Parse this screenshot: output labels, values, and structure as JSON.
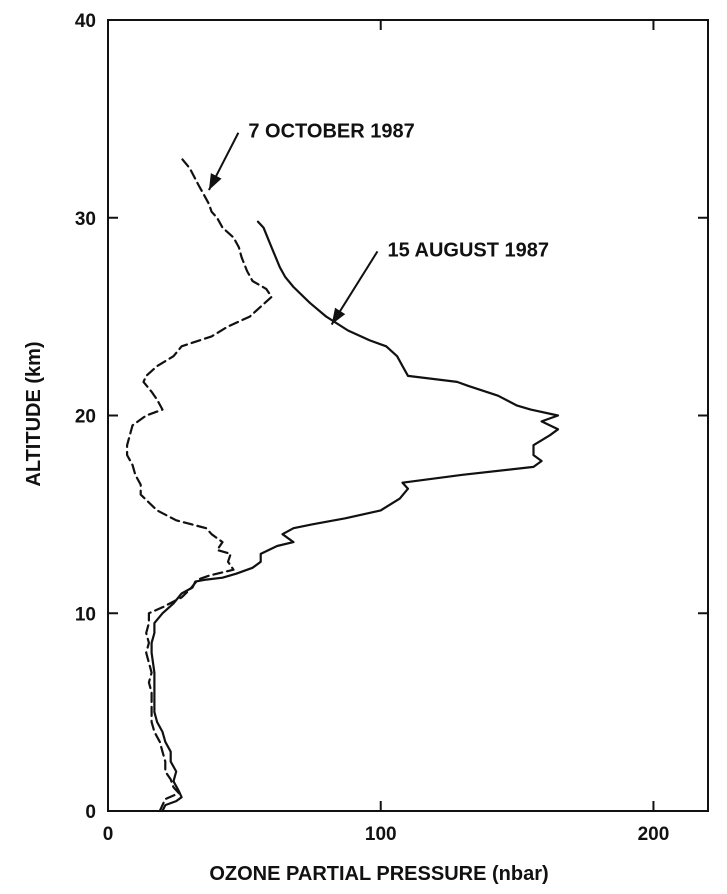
{
  "chart_data": {
    "type": "line",
    "title": "",
    "xlabel": "OZONE PARTIAL PRESSURE (nbar)",
    "ylabel": "ALTITUDE (km)",
    "xlim": [
      0,
      220
    ],
    "ylim": [
      0,
      40
    ],
    "x_ticks": [
      0,
      100,
      200
    ],
    "y_ticks": [
      0,
      10,
      20,
      30,
      40
    ],
    "x_tick_labels": [
      "0",
      "100",
      "200"
    ],
    "y_tick_labels": [
      "0",
      "10",
      "20",
      "30",
      "40"
    ],
    "grid": false,
    "legend": "none (series labeled by arrow annotations)",
    "series": [
      {
        "name": "15 AUGUST 1987",
        "style": "solid",
        "color": "#111111",
        "points": [
          [
            20,
            0
          ],
          [
            21,
            0.3
          ],
          [
            25,
            0.5
          ],
          [
            27,
            0.7
          ],
          [
            26,
            1.0
          ],
          [
            24,
            1.5
          ],
          [
            25,
            2.0
          ],
          [
            23,
            2.5
          ],
          [
            23,
            3.0
          ],
          [
            21,
            3.5
          ],
          [
            20,
            4.0
          ],
          [
            18,
            4.5
          ],
          [
            17,
            5.0
          ],
          [
            17,
            6.0
          ],
          [
            17,
            7.0
          ],
          [
            16,
            8.0
          ],
          [
            16,
            8.5
          ],
          [
            17,
            9.0
          ],
          [
            17,
            9.5
          ],
          [
            20,
            10.0
          ],
          [
            24,
            10.5
          ],
          [
            27,
            11.0
          ],
          [
            31,
            11.3
          ],
          [
            32,
            11.6
          ],
          [
            36,
            11.7
          ],
          [
            42,
            11.8
          ],
          [
            47,
            12.0
          ],
          [
            53,
            12.3
          ],
          [
            56,
            12.6
          ],
          [
            56,
            13.0
          ],
          [
            62,
            13.4
          ],
          [
            68,
            13.6
          ],
          [
            64,
            14.0
          ],
          [
            68,
            14.3
          ],
          [
            75,
            14.5
          ],
          [
            87,
            14.8
          ],
          [
            100,
            15.2
          ],
          [
            107,
            15.8
          ],
          [
            110,
            16.3
          ],
          [
            108,
            16.6
          ],
          [
            130,
            17.0
          ],
          [
            156,
            17.4
          ],
          [
            159,
            17.7
          ],
          [
            156,
            18.0
          ],
          [
            156,
            18.5
          ],
          [
            162,
            19.0
          ],
          [
            165,
            19.3
          ],
          [
            159,
            19.7
          ],
          [
            165,
            20.0
          ],
          [
            155,
            20.3
          ],
          [
            150,
            20.5
          ],
          [
            143,
            21.0
          ],
          [
            132,
            21.5
          ],
          [
            128,
            21.7
          ],
          [
            110,
            22.0
          ],
          [
            108,
            22.5
          ],
          [
            106,
            23.0
          ],
          [
            102,
            23.5
          ],
          [
            96,
            23.8
          ],
          [
            88,
            24.3
          ],
          [
            80,
            25.0
          ],
          [
            74,
            25.7
          ],
          [
            68,
            26.5
          ],
          [
            65,
            27.0
          ],
          [
            63,
            27.5
          ],
          [
            60,
            28.5
          ],
          [
            57,
            29.5
          ],
          [
            55,
            29.8
          ]
        ]
      },
      {
        "name": "7 OCTOBER 1987",
        "style": "dashed",
        "color": "#111111",
        "points": [
          [
            19,
            0
          ],
          [
            20,
            0.3
          ],
          [
            21,
            0.6
          ],
          [
            26,
            0.9
          ],
          [
            24,
            1.2
          ],
          [
            23,
            1.6
          ],
          [
            21,
            2.0
          ],
          [
            21,
            2.5
          ],
          [
            20,
            3.0
          ],
          [
            19,
            3.5
          ],
          [
            17,
            4.0
          ],
          [
            16,
            4.5
          ],
          [
            16,
            5.0
          ],
          [
            16,
            6.0
          ],
          [
            15,
            6.5
          ],
          [
            16,
            7.0
          ],
          [
            15,
            7.5
          ],
          [
            14,
            8.0
          ],
          [
            15,
            8.5
          ],
          [
            14,
            9.0
          ],
          [
            15,
            9.5
          ],
          [
            15,
            10.0
          ],
          [
            20,
            10.3
          ],
          [
            27,
            10.8
          ],
          [
            30,
            11.2
          ],
          [
            33,
            11.7
          ],
          [
            37,
            11.9
          ],
          [
            46,
            12.2
          ],
          [
            44,
            12.6
          ],
          [
            45,
            13.0
          ],
          [
            40,
            13.2
          ],
          [
            42,
            13.6
          ],
          [
            38,
            14.0
          ],
          [
            36,
            14.3
          ],
          [
            25,
            14.7
          ],
          [
            18,
            15.2
          ],
          [
            15,
            15.6
          ],
          [
            12,
            16.0
          ],
          [
            12,
            16.5
          ],
          [
            10,
            17.0
          ],
          [
            9,
            17.5
          ],
          [
            7,
            18.0
          ],
          [
            7,
            18.5
          ],
          [
            8,
            19.0
          ],
          [
            9,
            19.5
          ],
          [
            14,
            20.0
          ],
          [
            20,
            20.3
          ],
          [
            18,
            20.8
          ],
          [
            16,
            21.2
          ],
          [
            13,
            21.7
          ],
          [
            14,
            22.0
          ],
          [
            18,
            22.5
          ],
          [
            24,
            23.0
          ],
          [
            27,
            23.5
          ],
          [
            38,
            24.0
          ],
          [
            44,
            24.5
          ],
          [
            52,
            25.0
          ],
          [
            56,
            25.5
          ],
          [
            60,
            26.0
          ],
          [
            58,
            26.4
          ],
          [
            53,
            26.8
          ],
          [
            51,
            27.3
          ],
          [
            49,
            28.0
          ],
          [
            48,
            28.5
          ],
          [
            46,
            29.0
          ],
          [
            42,
            29.5
          ],
          [
            40,
            30.0
          ],
          [
            38,
            30.3
          ],
          [
            37,
            30.7
          ],
          [
            35,
            31.2
          ],
          [
            33,
            31.7
          ],
          [
            30,
            32.5
          ],
          [
            27,
            33.0
          ]
        ]
      }
    ],
    "annotations": [
      {
        "text": "7 OCTOBER 1987",
        "arrow_to": [
          37,
          31.4
        ],
        "label_anchor": [
          50,
          34.4
        ]
      },
      {
        "text": "15 AUGUST 1987",
        "arrow_to": [
          82,
          24.6
        ],
        "label_anchor": [
          101,
          28.4
        ]
      }
    ]
  }
}
